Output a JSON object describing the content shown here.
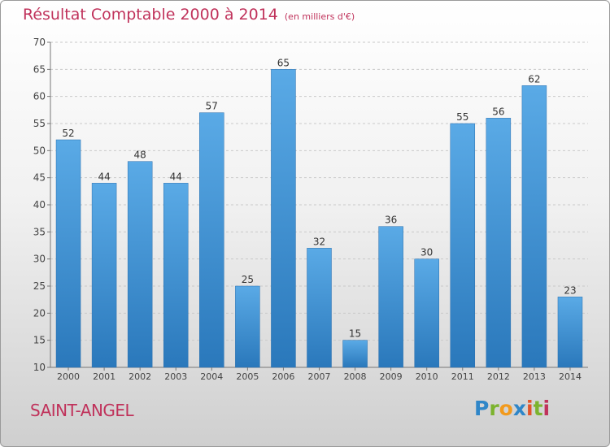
{
  "title": "Résultat Comptable 2000 à 2014",
  "subtitle": "(en milliers d'€)",
  "commune": "SAINT-ANGEL",
  "logo": "Proxiti",
  "colors": {
    "bar": "#3a8fd4",
    "title": "#c0325b"
  },
  "chart_data": {
    "type": "bar",
    "title": "Résultat Comptable 2000 à 2014",
    "subtitle": "(en milliers d'€)",
    "categories": [
      "2000",
      "2001",
      "2002",
      "2003",
      "2004",
      "2005",
      "2006",
      "2007",
      "2008",
      "2009",
      "2010",
      "2011",
      "2012",
      "2013",
      "2014"
    ],
    "values": [
      52,
      44,
      48,
      44,
      57,
      25,
      65,
      32,
      15,
      36,
      30,
      55,
      56,
      62,
      23
    ],
    "ylim": [
      10,
      70
    ],
    "yticks": [
      10,
      15,
      20,
      25,
      30,
      35,
      40,
      45,
      50,
      55,
      60,
      65,
      70
    ],
    "grid": true
  }
}
